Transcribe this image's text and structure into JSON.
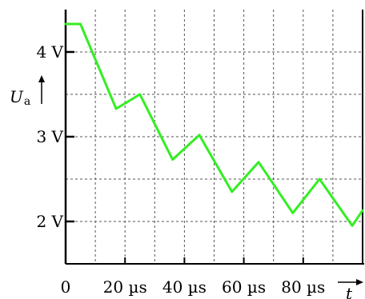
{
  "chart_data": {
    "type": "line",
    "xlabel": "t",
    "ylabel": {
      "symbol": "U",
      "subscript": "a"
    },
    "xlim": [
      0,
      100
    ],
    "ylim": [
      1.5,
      4.5
    ],
    "grid": true,
    "x_ticks": [
      {
        "value": 0,
        "label": "0"
      },
      {
        "value": 20,
        "label": "20 µs"
      },
      {
        "value": 40,
        "label": "40 µs"
      },
      {
        "value": 60,
        "label": "60 µs"
      },
      {
        "value": 80,
        "label": "80 µs"
      }
    ],
    "y_ticks": [
      {
        "value": 2,
        "label": "2 V"
      },
      {
        "value": 3,
        "label": "3 V"
      },
      {
        "value": 4,
        "label": "4 V"
      }
    ],
    "line_color": "#33ee22",
    "series": [
      {
        "x": [
          0,
          5,
          17,
          25,
          36,
          45,
          56,
          65,
          76.5,
          85.5,
          96.5,
          100
        ],
        "y": [
          4.33,
          4.33,
          3.33,
          3.5,
          2.73,
          3.02,
          2.35,
          2.7,
          2.1,
          2.5,
          1.95,
          2.13
        ]
      }
    ]
  }
}
